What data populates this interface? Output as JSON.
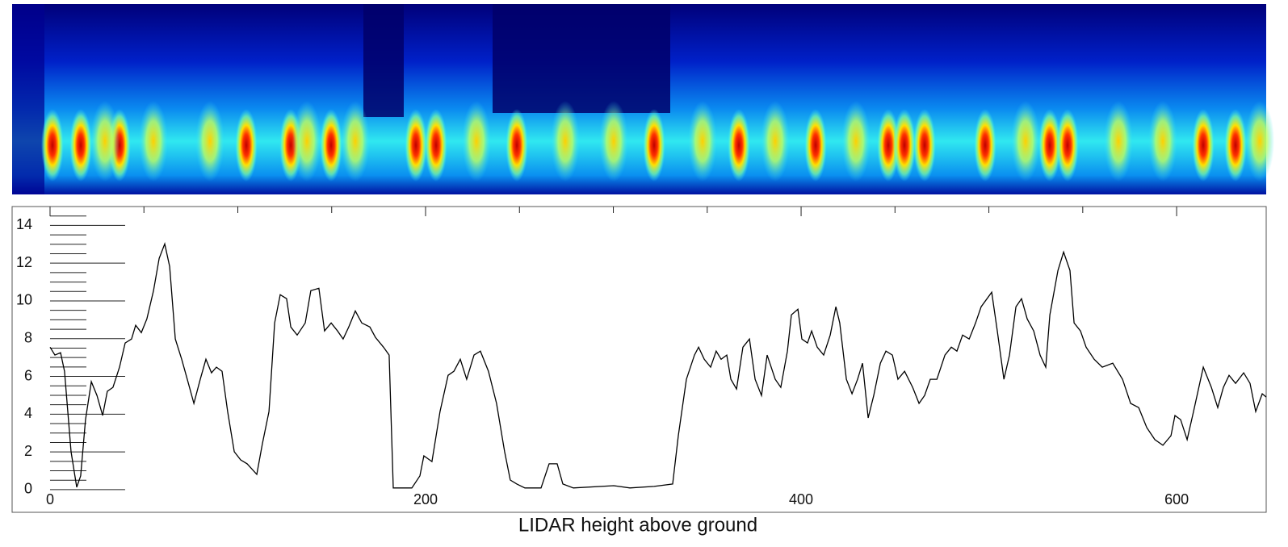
{
  "chart_data": {
    "type": "line",
    "title": "LIDAR height above ground",
    "color": "#000000",
    "x": [
      0,
      2.6,
      5.6,
      7.7,
      11.2,
      14.2,
      16.3,
      18.9,
      22.0,
      25.0,
      28.0,
      30.5,
      33.5,
      37.0,
      40.0,
      43.4,
      45.6,
      48.6,
      51.6,
      55.1,
      58.1,
      61.1,
      63.7,
      66.7,
      70.1,
      73.1,
      76.6,
      80.0,
      83.0,
      86.0,
      88.6,
      91.6,
      94.6,
      98.1,
      101.5,
      105.0,
      110.1,
      113.1,
      116.6,
      119.6,
      122.6,
      126.0,
      128.2,
      131.6,
      135.9,
      138.9,
      143.2,
      146.2,
      149.7,
      153.1,
      156.1,
      159.1,
      162.6,
      166.0,
      170.3,
      173.3,
      177.6,
      180.6,
      182.8,
      192.7,
      197.0,
      199.1,
      203.4,
      207.7,
      212.0,
      215.1,
      218.5,
      221.9,
      225.8,
      229.2,
      233.5,
      237.8,
      242.1,
      245.1,
      248.6,
      252.9,
      261.5,
      265.8,
      270.1,
      273.1,
      278.7,
      300.2,
      308.8,
      321.7,
      331.6,
      334.6,
      338.9,
      343.2,
      345.4,
      348.4,
      351.8,
      354.8,
      357.4,
      360.4,
      362.6,
      365.6,
      369.0,
      372.5,
      375.5,
      378.9,
      381.9,
      386.2,
      389.2,
      392.7,
      394.8,
      398.3,
      400.4,
      403.4,
      405.6,
      408.6,
      412.0,
      415.5,
      418.5,
      420.6,
      424.1,
      427.1,
      430.1,
      432.7,
      435.7,
      438.7,
      442.2,
      445.2,
      448.6,
      451.6,
      455.1,
      459.4,
      462.8,
      465.8,
      468.8,
      472.3,
      476.6,
      480.0,
      483.0,
      486.0,
      489.5,
      492.9,
      495.9,
      501.5,
      504.5,
      508.0,
      511.0,
      514.4,
      517.4,
      520.4,
      523.9,
      527.3,
      530.3,
      532.5,
      536.8,
      539.8,
      543.2,
      545.4,
      548.8,
      551.8,
      556.1,
      560.4,
      566.0,
      571.2,
      575.5,
      579.8,
      584.1,
      588.4,
      592.7,
      597.0,
      599.1,
      602.1,
      605.6,
      609.0,
      614.2,
      618.5,
      621.9,
      624.9,
      627.9,
      631.4,
      635.7,
      639.1,
      642.1,
      645.6,
      647.7
    ],
    "values": [
      7.55,
      7.13,
      7.26,
      6.27,
      2.01,
      0.13,
      0.73,
      3.71,
      5.72,
      4.99,
      3.93,
      5.21,
      5.42,
      6.49,
      7.77,
      7.98,
      8.71,
      8.32,
      9.05,
      10.54,
      12.25,
      13.02,
      11.82,
      7.98,
      6.91,
      5.85,
      4.57,
      5.85,
      6.91,
      6.19,
      6.49,
      6.27,
      4.14,
      2.01,
      1.58,
      1.37,
      0.81,
      2.43,
      4.14,
      8.83,
      10.33,
      10.12,
      8.62,
      8.19,
      8.83,
      10.54,
      10.67,
      8.41,
      8.83,
      8.41,
      7.98,
      8.62,
      9.47,
      8.83,
      8.62,
      8.07,
      7.55,
      7.13,
      0.09,
      0.09,
      0.73,
      1.79,
      1.49,
      4.14,
      6.06,
      6.27,
      6.91,
      5.85,
      7.13,
      7.34,
      6.27,
      4.57,
      2.01,
      0.51,
      0.3,
      0.09,
      0.09,
      1.37,
      1.37,
      0.3,
      0.09,
      0.21,
      0.09,
      0.17,
      0.3,
      2.86,
      5.85,
      7.13,
      7.55,
      6.91,
      6.49,
      7.34,
      6.91,
      7.13,
      5.85,
      5.33,
      7.55,
      7.98,
      5.85,
      4.99,
      7.13,
      5.85,
      5.42,
      7.34,
      9.26,
      9.56,
      7.98,
      7.77,
      8.41,
      7.55,
      7.13,
      8.19,
      9.69,
      8.83,
      5.85,
      5.08,
      5.85,
      6.7,
      3.8,
      4.99,
      6.7,
      7.34,
      7.13,
      5.85,
      6.27,
      5.42,
      4.57,
      4.99,
      5.85,
      5.85,
      7.13,
      7.55,
      7.34,
      8.19,
      7.98,
      8.83,
      9.69,
      10.46,
      8.41,
      5.85,
      7.13,
      9.69,
      10.12,
      9.05,
      8.41,
      7.13,
      6.49,
      9.26,
      11.61,
      12.59,
      11.61,
      8.83,
      8.41,
      7.55,
      6.91,
      6.49,
      6.7,
      5.85,
      4.57,
      4.35,
      3.29,
      2.65,
      2.35,
      2.86,
      3.93,
      3.71,
      2.65,
      4.14,
      6.49,
      5.42,
      4.35,
      5.42,
      6.06,
      5.63,
      6.19,
      5.63,
      4.14,
      5.08,
      4.91
    ],
    "xlim": [
      -20.2,
      647.7
    ],
    "ylim": [
      -1.2,
      15
    ],
    "xticks": [
      0,
      200,
      400,
      600
    ],
    "xminorticks": [
      50,
      100,
      150,
      250,
      300,
      350,
      450,
      500,
      550
    ],
    "yticks": [
      0,
      2,
      4,
      6,
      8,
      10,
      12,
      14
    ],
    "yminorticks": [
      0.5,
      1,
      1.5,
      2.5,
      3,
      3.5,
      4.5,
      5,
      5.5,
      6.5,
      7,
      7.5,
      8.5,
      9,
      9.5,
      10.5,
      11,
      11.5,
      12.5,
      13,
      13.5,
      14.5
    ]
  }
}
